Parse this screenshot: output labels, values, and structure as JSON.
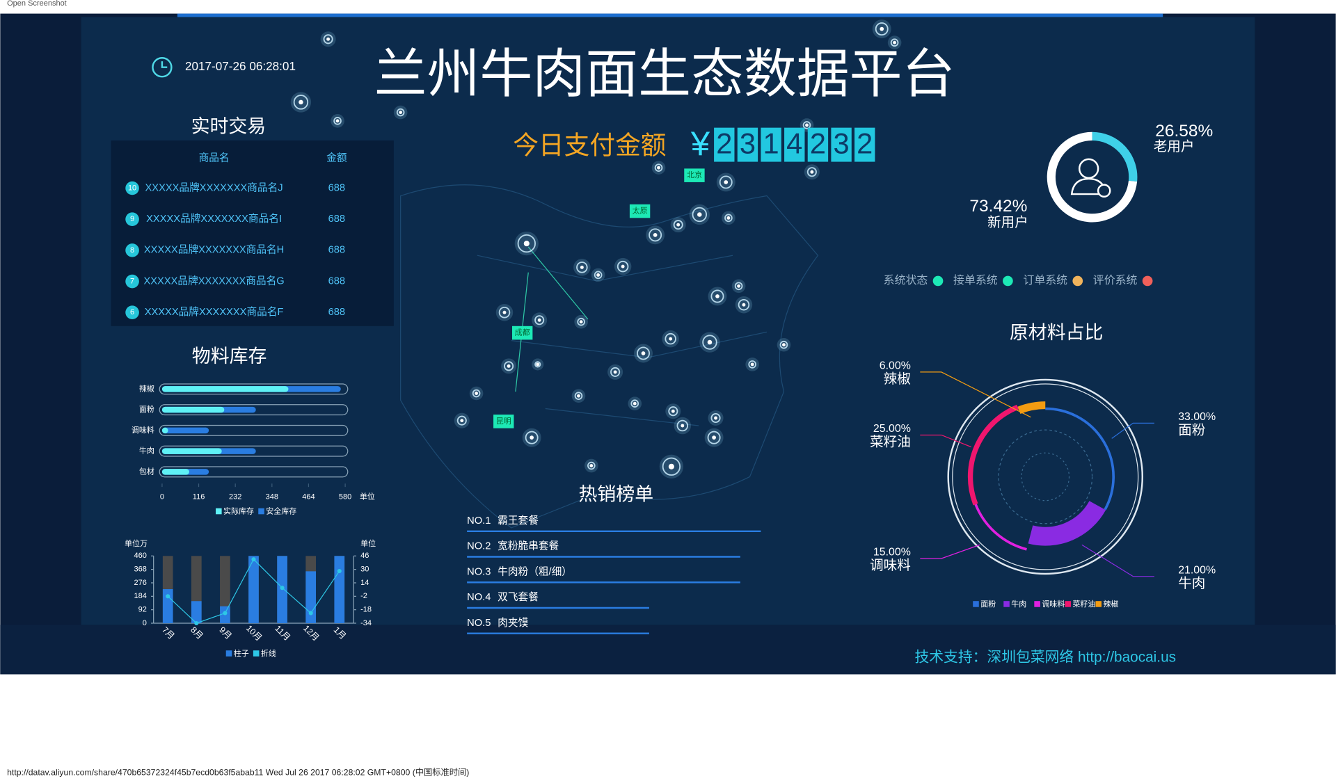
{
  "browser": {
    "tab_title": "Open Screenshot",
    "status_text": "http://datav.aliyun.com/share/470b65372324f45b7ecd0b63f5abab11 Wed Jul 26 2017 06:28:02 GMT+0800 (中国标准时间)"
  },
  "header": {
    "title": "兰州牛肉面生态数据平台",
    "datetime": "2017-07-26 06:28:01"
  },
  "payment": {
    "label": "今日支付金额",
    "currency": "¥",
    "digits": [
      "2",
      "3",
      "1",
      "4",
      "2",
      "3",
      "2"
    ]
  },
  "transactions": {
    "title": "实时交易",
    "columns": [
      "商品名",
      "金额"
    ],
    "rows": [
      {
        "rank": "10",
        "name": "XXXXX品牌XXXXXXX商品名J",
        "amount": 688
      },
      {
        "rank": "9",
        "name": "XXXXX品牌XXXXXXX商品名I",
        "amount": 688
      },
      {
        "rank": "8",
        "name": "XXXXX品牌XXXXXXX商品名H",
        "amount": 688
      },
      {
        "rank": "7",
        "name": "XXXXX品牌XXXXXXX商品名G",
        "amount": 688
      },
      {
        "rank": "6",
        "name": "XXXXX品牌XXXXXXX商品名F",
        "amount": 688
      }
    ]
  },
  "map": {
    "cities": [
      "北京",
      "太原",
      "成都",
      "昆明"
    ]
  },
  "inventory": {
    "type": "bar",
    "title": "物料库存",
    "categories": [
      "辣椒",
      "面粉",
      "调味料",
      "牛肉",
      "包材"
    ],
    "series": [
      {
        "name": "实际库存",
        "color": "#5ff1f5",
        "values": [
          400,
          197,
          19,
          189,
          86
        ]
      },
      {
        "name": "安全库存",
        "color": "#2a7de1",
        "values": [
          566,
          297,
          148,
          297,
          148
        ]
      }
    ],
    "xlim": [
      0,
      580
    ],
    "xticks": [
      0,
      116,
      232,
      348,
      464,
      580
    ],
    "x_unit": "单位"
  },
  "monthly": {
    "type": "bar-line",
    "categories": [
      "7月",
      "8月",
      "9月",
      "10月",
      "11月",
      "12月",
      "1月"
    ],
    "y_unit": "单位万",
    "y2_unit": "单位",
    "ylim": [
      0,
      460
    ],
    "yticks": [
      0,
      92,
      184,
      276,
      368,
      460
    ],
    "y2lim": [
      -34,
      46
    ],
    "y2ticks": [
      -34,
      -18,
      -2,
      14,
      30,
      46
    ],
    "series": [
      {
        "name": "柱子",
        "type": "bar",
        "color": "#2a7de1",
        "values": [
          233,
          151,
          116,
          460,
          460,
          355,
          460
        ]
      },
      {
        "name": "折线",
        "type": "line",
        "axis": "y2",
        "color": "#2ec7e6",
        "values": [
          -2,
          -34,
          -22,
          42,
          8,
          -22,
          28
        ]
      }
    ]
  },
  "ranking": {
    "type": "bar",
    "title": "热销榜单",
    "items": [
      {
        "rank": "NO.1",
        "name": "霸王套餐"
      },
      {
        "rank": "NO.2",
        "name": "宽粉脆串套餐"
      },
      {
        "rank": "NO.3",
        "name": "牛肉粉（粗/细）"
      },
      {
        "rank": "NO.4",
        "name": "双飞套餐"
      },
      {
        "rank": "NO.5",
        "name": "肉夹馍"
      }
    ],
    "values": [
      100,
      93,
      93,
      62,
      62
    ],
    "color": "#2a7de1"
  },
  "users": {
    "type": "pie",
    "categories": [
      "老用户",
      "新用户"
    ],
    "values": [
      26.58,
      73.42
    ],
    "value_labels": [
      "26.58%",
      "73.42%"
    ],
    "colors": [
      "#3fd0e8",
      "#ffffff"
    ]
  },
  "status": {
    "items": [
      {
        "name": "系统状态",
        "color": "#1de9b6"
      },
      {
        "name": "接单系统",
        "color": "#1de9b6"
      },
      {
        "name": "订单系统",
        "color": "#f0b35c"
      },
      {
        "name": "评价系统",
        "color": "#f0605a"
      }
    ]
  },
  "materials": {
    "type": "pie",
    "title": "原材料占比",
    "categories": [
      "面粉",
      "牛肉",
      "调味料",
      "菜籽油",
      "辣椒"
    ],
    "values": [
      33,
      21,
      15,
      25,
      6
    ],
    "value_labels": [
      "33.00%",
      "21.00%",
      "15.00%",
      "25.00%",
      "6.00%"
    ],
    "colors": [
      "#2a6fdb",
      "#8a2be2",
      "#e020e0",
      "#f0166e",
      "#f39c12"
    ]
  },
  "footer": {
    "text": "技术支持：深圳包菜网络 http://baocai.us"
  }
}
